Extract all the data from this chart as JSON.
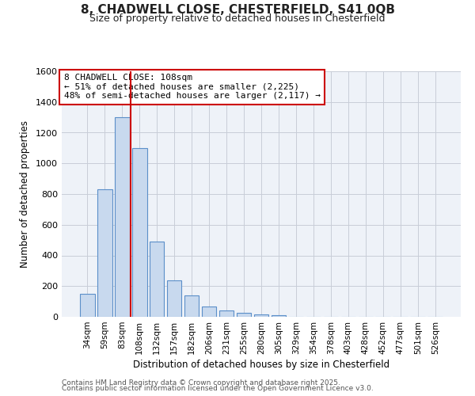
{
  "title_line1": "8, CHADWELL CLOSE, CHESTERFIELD, S41 0QB",
  "title_line2": "Size of property relative to detached houses in Chesterfield",
  "xlabel": "Distribution of detached houses by size in Chesterfield",
  "ylabel": "Number of detached properties",
  "annotation_line1": "8 CHADWELL CLOSE: 108sqm",
  "annotation_line2": "← 51% of detached houses are smaller (2,225)",
  "annotation_line3": "48% of semi-detached houses are larger (2,117) →",
  "categories": [
    "34sqm",
    "59sqm",
    "83sqm",
    "108sqm",
    "132sqm",
    "157sqm",
    "182sqm",
    "206sqm",
    "231sqm",
    "255sqm",
    "280sqm",
    "305sqm",
    "329sqm",
    "354sqm",
    "378sqm",
    "403sqm",
    "428sqm",
    "452sqm",
    "477sqm",
    "501sqm",
    "526sqm"
  ],
  "values": [
    150,
    830,
    1300,
    1100,
    490,
    235,
    140,
    65,
    40,
    28,
    15,
    10,
    0,
    0,
    0,
    0,
    0,
    0,
    0,
    0,
    0
  ],
  "bar_color": "#c8d9ee",
  "bar_edge_color": "#5b8fc9",
  "vline_x": 2.5,
  "vline_color": "#cc0000",
  "annotation_box_edge_color": "#cc0000",
  "ylim": [
    0,
    1600
  ],
  "yticks": [
    0,
    200,
    400,
    600,
    800,
    1000,
    1200,
    1400,
    1600
  ],
  "background_color": "#ffffff",
  "plot_background": "#eef2f8",
  "footer_line1": "Contains HM Land Registry data © Crown copyright and database right 2025.",
  "footer_line2": "Contains public sector information licensed under the Open Government Licence v3.0."
}
